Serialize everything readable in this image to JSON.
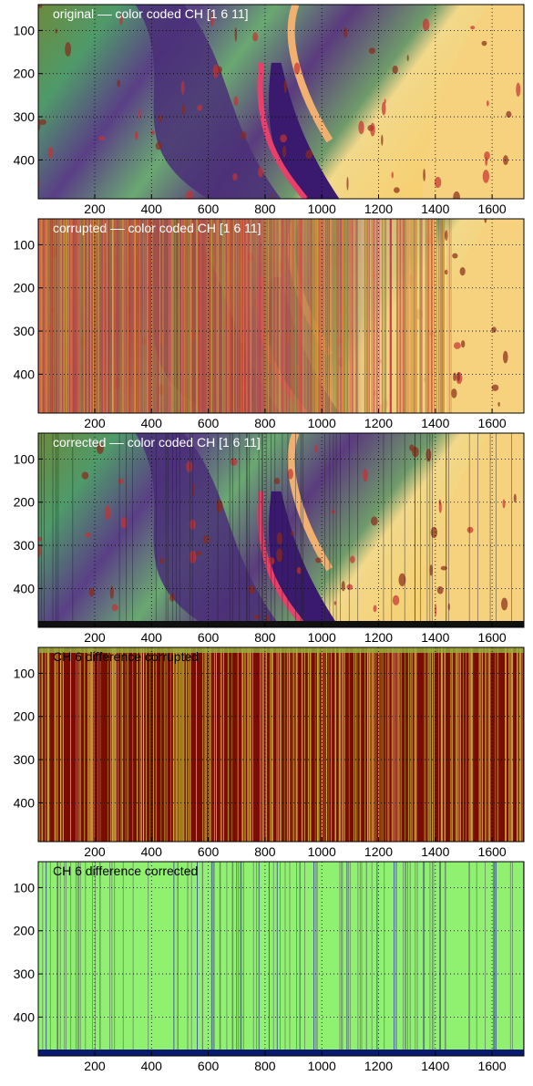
{
  "chart_data": [
    {
      "type": "image",
      "title": "original –– color coded CH [1 6 11]",
      "xlim": [
        1,
        1712
      ],
      "ylim": [
        40,
        490
      ],
      "y_reversed": true,
      "xticks": [
        200,
        400,
        600,
        800,
        1000,
        1200,
        1400,
        1600
      ],
      "yticks": [
        100,
        200,
        300,
        400
      ],
      "grid": true
    },
    {
      "type": "image",
      "title": "corrupted –– color coded CH [1 6 11]",
      "xlim": [
        1,
        1712
      ],
      "ylim": [
        40,
        490
      ],
      "y_reversed": true,
      "xticks": [
        200,
        400,
        600,
        800,
        1000,
        1200,
        1400,
        1600
      ],
      "yticks": [
        100,
        200,
        300,
        400
      ],
      "grid": true
    },
    {
      "type": "image",
      "title": "corrected –– color coded CH [1 6 11]",
      "xlim": [
        1,
        1712
      ],
      "ylim": [
        40,
        490
      ],
      "y_reversed": true,
      "xticks": [
        200,
        400,
        600,
        800,
        1000,
        1200,
        1400,
        1600
      ],
      "yticks": [
        100,
        200,
        300,
        400
      ],
      "grid": true
    },
    {
      "type": "image",
      "title": "CH 6 difference corrupted",
      "xlim": [
        1,
        1712
      ],
      "ylim": [
        40,
        490
      ],
      "y_reversed": true,
      "xticks": [
        200,
        400,
        600,
        800,
        1000,
        1200,
        1400,
        1600
      ],
      "yticks": [
        100,
        200,
        300,
        400
      ],
      "grid": true
    },
    {
      "type": "image",
      "title": "CH 6 difference corrected",
      "xlim": [
        1,
        1712
      ],
      "ylim": [
        40,
        490
      ],
      "y_reversed": true,
      "xticks": [
        200,
        400,
        600,
        800,
        1000,
        1200,
        1400,
        1600
      ],
      "yticks": [
        100,
        200,
        300,
        400
      ],
      "grid": true
    }
  ]
}
